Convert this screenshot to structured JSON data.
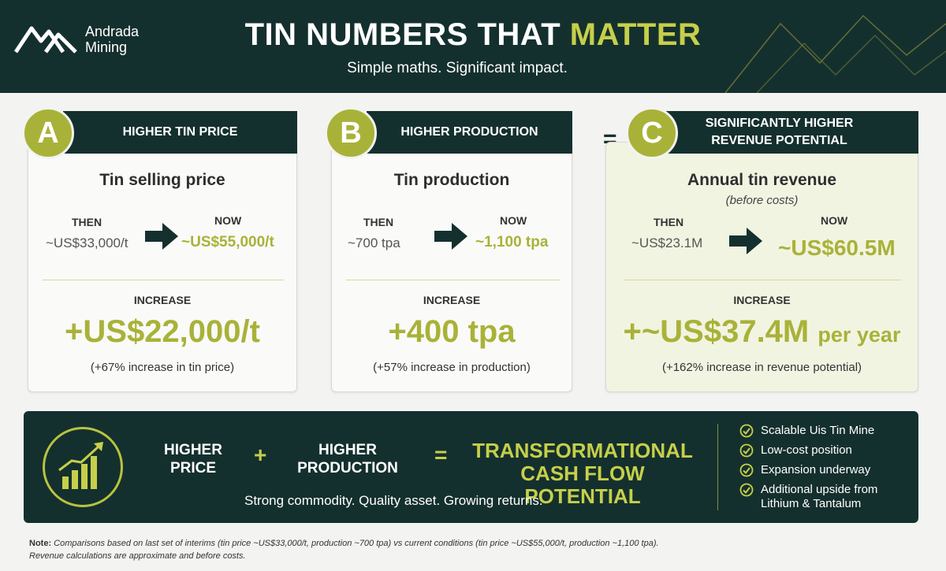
{
  "brand": {
    "line1": "Andrada",
    "line2": "Mining"
  },
  "header": {
    "title_part1": "TIN NUMBERS THAT ",
    "title_highlight": "MATTER",
    "subtitle": "Simple maths. Significant impact."
  },
  "colors": {
    "dark_teal": "#14302e",
    "olive_accent": "#a9b238",
    "lime_highlight": "#c6cf4a"
  },
  "cards": [
    {
      "badge": "A",
      "heading": "HIGHER TIN PRICE",
      "metric": "Tin selling price",
      "then_label": "THEN",
      "then_value": "~US$33,000/t",
      "now_label": "NOW",
      "now_value": "~US$55,000/t",
      "increase_label": "INCREASE",
      "increase_value": "+US$22,000/t",
      "increase_note": "(+67% increase in tin price)"
    },
    {
      "badge": "B",
      "heading": "HIGHER PRODUCTION",
      "metric": "Tin production",
      "then_label": "THEN",
      "then_value": "~700 tpa",
      "now_label": "NOW",
      "now_value": "~1,100 tpa",
      "increase_label": "INCREASE",
      "increase_value": "+400 tpa",
      "increase_note": "(+57% increase in production)"
    },
    {
      "badge": "C",
      "heading_line1": "SIGNIFICANTLY HIGHER",
      "heading_line2": "REVENUE POTENTIAL",
      "metric": "Annual tin revenue",
      "metric_sub": "(before costs)",
      "then_label": "THEN",
      "then_value": "~US$23.1M",
      "now_label": "NOW",
      "now_value": "~US$60.5M",
      "increase_label": "INCREASE",
      "increase_value": "+~US$37.4M",
      "increase_suffix": "per year",
      "increase_note": "(+162% increase in revenue potential)"
    }
  ],
  "equals_sign": "=",
  "summary": {
    "term1_line1": "HIGHER",
    "term1_line2": "PRICE",
    "plus": "+",
    "term2_line1": "HIGHER",
    "term2_line2": "PRODUCTION",
    "equals": "=",
    "result_line1": "TRANSFORMATIONAL",
    "result_line2": "CASH FLOW POTENTIAL",
    "tagline": "Strong commodity. Quality asset. Growing returns.",
    "icons": [
      "growth-chart-icon",
      "check-circle-icon"
    ],
    "bullets": [
      "Scalable Uis Tin Mine",
      "Low-cost position",
      "Expansion underway",
      "Additional upside from Lithium & Tantalum"
    ]
  },
  "footnote": {
    "label": "Note:",
    "line1": " Comparisons based on last set of interims (tin price ~US$33,000/t, production ~700 tpa) vs current conditions (tin price ~US$55,000/t, production ~1,100 tpa).",
    "line2": "Revenue calculations are approximate and before costs."
  }
}
